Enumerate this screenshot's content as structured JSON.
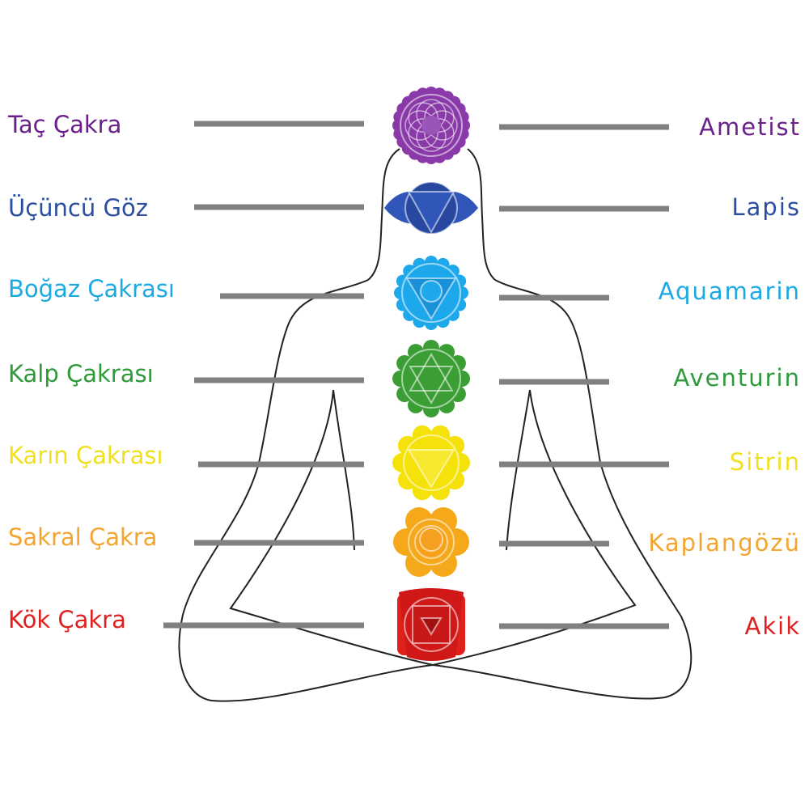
{
  "chakras": [
    {
      "name": "Taç Çakra",
      "stone": "Ametist",
      "color": "#6a1f8a",
      "symbol_color": "#8a3aa8",
      "symbol": "crown"
    },
    {
      "name": "Üçüncü Göz",
      "stone": "Lapis",
      "color": "#2a4fa0",
      "symbol_color": "#2f56b8",
      "symbol": "third-eye"
    },
    {
      "name": "Boğaz Çakrası",
      "stone": "Aquamarin",
      "color": "#1aa9e0",
      "symbol_color": "#1ea8ec",
      "symbol": "throat"
    },
    {
      "name": "Kalp Çakrası",
      "stone": "Aventurin",
      "color": "#2e9a3a",
      "symbol_color": "#3a9e34",
      "symbol": "heart"
    },
    {
      "name": "Karın Çakrası",
      "stone": "Sitrin",
      "color": "#f0e020",
      "symbol_color": "#f5e20a",
      "symbol": "solar-plexus"
    },
    {
      "name": "Sakral Çakra",
      "stone": "Kaplangözü",
      "color": "#f3a530",
      "symbol_color": "#f5a91a",
      "symbol": "sacral"
    },
    {
      "name": "Kök Çakra",
      "stone": "Akik",
      "color": "#e02020",
      "symbol_color": "#e0201a",
      "symbol": "root"
    }
  ],
  "line_color": "#808080",
  "outline_color": "#222222"
}
